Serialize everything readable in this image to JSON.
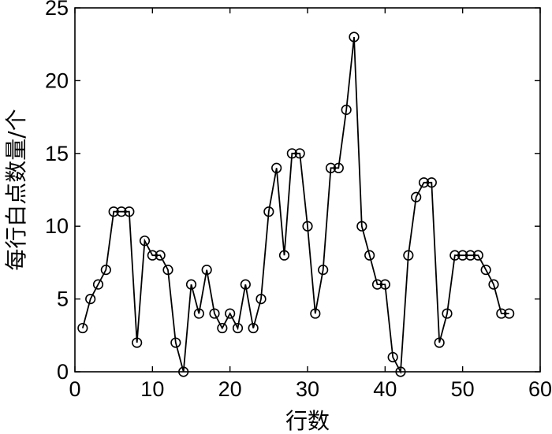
{
  "chart_data": {
    "type": "line",
    "title": "",
    "xlabel": "行数",
    "ylabel": "每行白点数量/个",
    "xlim": [
      0,
      60
    ],
    "ylim": [
      0,
      25
    ],
    "xticks": [
      0,
      10,
      20,
      30,
      40,
      50,
      60
    ],
    "yticks": [
      0,
      5,
      10,
      15,
      20,
      25
    ],
    "xtick_labels": [
      "0",
      "10",
      "20",
      "30",
      "40",
      "50",
      "60"
    ],
    "ytick_labels": [
      "0",
      "5",
      "10",
      "15",
      "20",
      "25"
    ],
    "grid": false,
    "marker": "open-circle",
    "line_color": "#000000",
    "series": [
      {
        "x": [
          1,
          2,
          3,
          4,
          5,
          6,
          7,
          8,
          9,
          10,
          11,
          12,
          13,
          14,
          15,
          16,
          17,
          18,
          19,
          20,
          21,
          22,
          23,
          24,
          25,
          26,
          27,
          28,
          29,
          30,
          31,
          32,
          33,
          34,
          35,
          36,
          37,
          38,
          39,
          40,
          41,
          42,
          43,
          44,
          45,
          46,
          47,
          48,
          49,
          50,
          51,
          52,
          53,
          54,
          55,
          56
        ],
        "values": [
          3,
          5,
          6,
          7,
          11,
          11,
          11,
          2,
          9,
          8,
          8,
          7,
          2,
          0,
          6,
          4,
          7,
          4,
          3,
          4,
          3,
          6,
          3,
          5,
          11,
          14,
          8,
          15,
          15,
          10,
          4,
          7,
          14,
          14,
          18,
          23,
          10,
          8,
          6,
          6,
          1,
          0,
          8,
          12,
          13,
          13,
          2,
          4,
          8,
          8,
          8,
          8,
          7,
          6,
          4,
          4
        ]
      }
    ]
  }
}
